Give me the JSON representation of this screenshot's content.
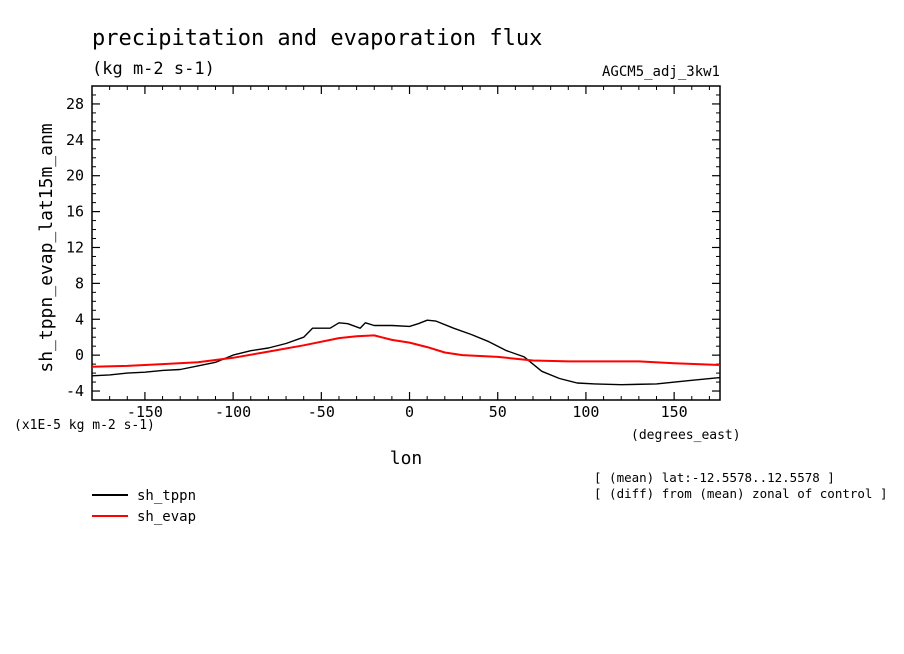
{
  "chart_data": {
    "type": "line",
    "title": "precipitation and evaporation flux",
    "subtitle": "(kg m-2 s-1)",
    "run_label": "AGCM5_adj_3kw1",
    "ylabel": "sh_tppn_evap_lat15m_anm",
    "xlabel": "lon",
    "x_units": "(degrees_east)",
    "y_scale_note": "(x1E-5 kg m-2 s-1)",
    "notes": [
      "[ (mean) lat:-12.5578..12.5578 ]",
      "[ (diff) from (mean) zonal of control ]"
    ],
    "xlim": [
      -180,
      176
    ],
    "ylim": [
      -5,
      30
    ],
    "x_ticks": [
      -150,
      -100,
      -50,
      0,
      50,
      100,
      150
    ],
    "x_tick_labels": [
      "-150",
      "-100",
      "-50",
      "0",
      "50",
      "100",
      "150"
    ],
    "y_ticks": [
      -4,
      0,
      4,
      8,
      12,
      16,
      20,
      24,
      28
    ],
    "y_tick_labels": [
      "-4",
      "0",
      "4",
      "8",
      "12",
      "16",
      "20",
      "24",
      "28"
    ],
    "grid": false,
    "legend_position": "bottom-left",
    "series": [
      {
        "name": "sh_tppn",
        "color": "#000000",
        "points": [
          [
            -180,
            -2.3
          ],
          [
            -170,
            -2.2
          ],
          [
            -160,
            -2.0
          ],
          [
            -150,
            -1.9
          ],
          [
            -140,
            -1.7
          ],
          [
            -130,
            -1.6
          ],
          [
            -120,
            -1.2
          ],
          [
            -110,
            -0.8
          ],
          [
            -100,
            0.0
          ],
          [
            -90,
            0.5
          ],
          [
            -80,
            0.8
          ],
          [
            -70,
            1.3
          ],
          [
            -60,
            2.0
          ],
          [
            -55,
            3.0
          ],
          [
            -45,
            3.0
          ],
          [
            -40,
            3.6
          ],
          [
            -35,
            3.5
          ],
          [
            -28,
            3.0
          ],
          [
            -25,
            3.6
          ],
          [
            -20,
            3.3
          ],
          [
            -10,
            3.3
          ],
          [
            0,
            3.2
          ],
          [
            5,
            3.5
          ],
          [
            10,
            3.9
          ],
          [
            15,
            3.8
          ],
          [
            25,
            3.0
          ],
          [
            35,
            2.3
          ],
          [
            45,
            1.5
          ],
          [
            55,
            0.5
          ],
          [
            65,
            -0.2
          ],
          [
            75,
            -1.8
          ],
          [
            85,
            -2.6
          ],
          [
            95,
            -3.1
          ],
          [
            105,
            -3.2
          ],
          [
            120,
            -3.3
          ],
          [
            140,
            -3.2
          ],
          [
            160,
            -2.8
          ],
          [
            176,
            -2.5
          ]
        ]
      },
      {
        "name": "sh_evap",
        "color": "#ff0000",
        "points": [
          [
            -180,
            -1.3
          ],
          [
            -160,
            -1.2
          ],
          [
            -140,
            -1.0
          ],
          [
            -120,
            -0.8
          ],
          [
            -100,
            -0.3
          ],
          [
            -80,
            0.4
          ],
          [
            -60,
            1.1
          ],
          [
            -40,
            1.9
          ],
          [
            -30,
            2.1
          ],
          [
            -20,
            2.2
          ],
          [
            -10,
            1.7
          ],
          [
            0,
            1.4
          ],
          [
            10,
            0.9
          ],
          [
            20,
            0.3
          ],
          [
            30,
            0.0
          ],
          [
            50,
            -0.2
          ],
          [
            70,
            -0.6
          ],
          [
            90,
            -0.7
          ],
          [
            110,
            -0.7
          ],
          [
            130,
            -0.7
          ],
          [
            150,
            -0.9
          ],
          [
            176,
            -1.1
          ]
        ]
      }
    ]
  }
}
